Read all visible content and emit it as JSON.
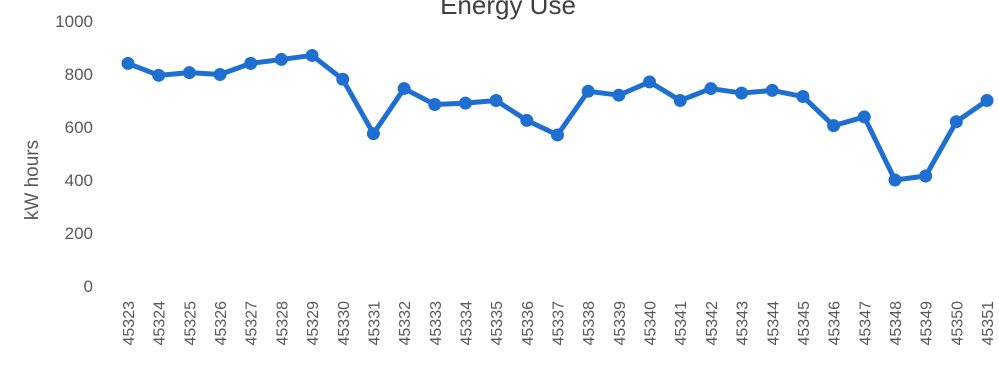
{
  "chart_data": {
    "type": "line",
    "title": "Energy Use",
    "xlabel": "",
    "ylabel": "kW hours",
    "ylim": [
      0,
      1000
    ],
    "yticks": [
      0,
      200,
      400,
      600,
      800,
      1000
    ],
    "grid": false,
    "legend": "none",
    "x": [
      "45323",
      "45324",
      "45325",
      "45326",
      "45327",
      "45328",
      "45329",
      "45330",
      "45331",
      "45332",
      "45333",
      "45334",
      "45335",
      "45336",
      "45337",
      "45338",
      "45339",
      "45340",
      "45341",
      "45342",
      "45343",
      "45344",
      "45345",
      "45346",
      "45347",
      "45348",
      "45349",
      "45350",
      "45351"
    ],
    "series": [
      {
        "color": "#1f6fd1",
        "values": [
          840,
          795,
          805,
          798,
          840,
          855,
          870,
          780,
          575,
          745,
          685,
          690,
          700,
          625,
          570,
          735,
          720,
          770,
          700,
          745,
          728,
          738,
          715,
          605,
          638,
          400,
          415,
          620,
          700
        ]
      }
    ]
  }
}
